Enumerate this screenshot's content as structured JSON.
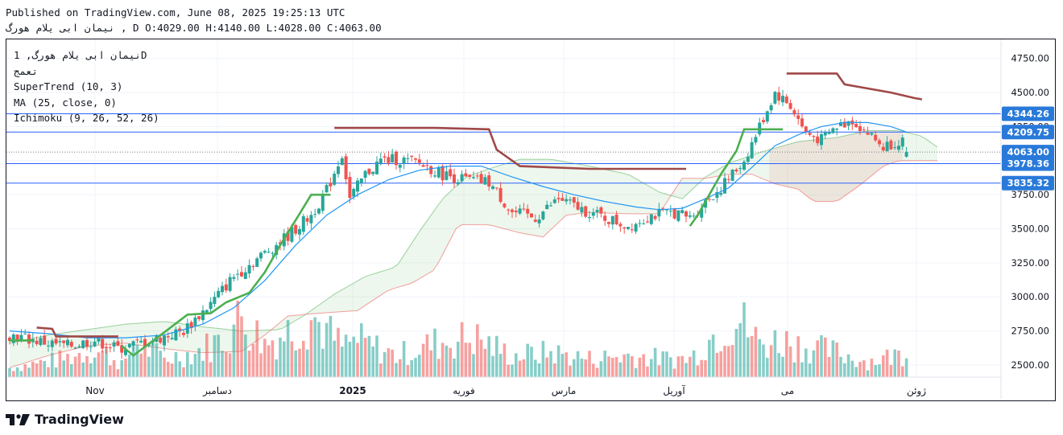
{
  "header": {
    "published": "Published on TradingView.com, June 08, 2025 19:25:13 UTC",
    "symbol_line": "نیمان ابی یلام هورگ ‎, D O:4029.00 H:4140.00 L:4028.00 C:4063.00"
  },
  "legend": {
    "symbol": "نیمان ابی یلام هورگ, 1D",
    "exchange": "تعمج",
    "indicators": [
      "SuperTrend (10, 3)",
      "MA (25, close, 0)",
      "Ichimoku (9, 26, 52, 26)"
    ]
  },
  "footer": {
    "brand": "TradingView"
  },
  "colors": {
    "up": "#26a69a",
    "down": "#ef5350",
    "supertrend_up": "#4caf50",
    "supertrend_down": "#a04848",
    "ma": "#2196f3",
    "cloud_green": "#4caf50",
    "cloud_red": "#ef5350",
    "level": "#2962ff",
    "badge": "#2979d9"
  },
  "chart_data": {
    "type": "candlestick",
    "y_ticks": [
      "4750.00",
      "4500.00",
      "4250.00",
      "4000.00",
      "3750.00",
      "3500.00",
      "3250.00",
      "3000.00",
      "2750.00",
      "2500.00"
    ],
    "ylim": [
      2240,
      4890
    ],
    "x_labels": [
      "Nov",
      "دسامبر",
      "2025",
      "فوریه",
      "مارس",
      "آوریل",
      "می",
      "ژوئن"
    ],
    "price_levels": [
      {
        "label": "4344.26",
        "value": 4344.26
      },
      {
        "label": "4209.75",
        "value": 4209.75
      },
      {
        "label": "4063.00",
        "value": 4063.0,
        "current": true
      },
      {
        "label": "3978.36",
        "value": 3978.36
      },
      {
        "label": "3835.32",
        "value": 3835.32
      }
    ],
    "ohlc_last": {
      "open": 4029.0,
      "high": 4140.0,
      "low": 4028.0,
      "close": 4063.0
    },
    "close_path": [
      [
        0,
        2720
      ],
      [
        10,
        2660
      ],
      [
        15,
        2640
      ],
      [
        22,
        2680
      ],
      [
        28,
        2620
      ],
      [
        38,
        2690
      ],
      [
        45,
        2750
      ],
      [
        52,
        2950
      ],
      [
        58,
        3150
      ],
      [
        65,
        3300
      ],
      [
        72,
        3450
      ],
      [
        78,
        3600
      ],
      [
        82,
        3780
      ],
      [
        86,
        4050
      ],
      [
        88,
        3720
      ],
      [
        92,
        3900
      ],
      [
        96,
        4000
      ],
      [
        100,
        4010
      ],
      [
        106,
        3980
      ],
      [
        112,
        3900
      ],
      [
        118,
        3860
      ],
      [
        124,
        3840
      ],
      [
        130,
        3620
      ],
      [
        136,
        3580
      ],
      [
        142,
        3720
      ],
      [
        148,
        3640
      ],
      [
        154,
        3580
      ],
      [
        160,
        3520
      ],
      [
        166,
        3600
      ],
      [
        172,
        3620
      ],
      [
        176,
        3580
      ],
      [
        180,
        3700
      ],
      [
        184,
        3800
      ],
      [
        190,
        4000
      ],
      [
        194,
        4250
      ],
      [
        198,
        4500
      ],
      [
        202,
        4400
      ],
      [
        206,
        4200
      ],
      [
        210,
        4150
      ],
      [
        214,
        4250
      ],
      [
        218,
        4300
      ],
      [
        222,
        4200
      ],
      [
        226,
        4100
      ],
      [
        230,
        4150
      ],
      [
        234,
        4120
      ],
      [
        238,
        4060
      ]
    ],
    "supertrend": [
      [
        0,
        2680
      ],
      [
        6,
        2680
      ],
      [
        7,
        2775
      ],
      [
        11,
        2765
      ],
      [
        12,
        2710
      ],
      [
        28,
        2710
      ],
      [
        29,
        2640
      ],
      [
        32,
        2570
      ],
      [
        40,
        2740
      ],
      [
        46,
        2870
      ],
      [
        52,
        2880
      ],
      [
        56,
        2960
      ],
      [
        62,
        3030
      ],
      [
        66,
        3180
      ],
      [
        70,
        3380
      ],
      [
        75,
        3610
      ],
      [
        78,
        3750
      ],
      [
        83,
        3750
      ],
      [
        84,
        4240
      ],
      [
        96,
        4240
      ],
      [
        110,
        4240
      ],
      [
        124,
        4230
      ],
      [
        126,
        4080
      ],
      [
        132,
        3960
      ],
      [
        150,
        3940
      ],
      [
        175,
        3940
      ],
      [
        176,
        3520
      ],
      [
        178,
        3600
      ],
      [
        184,
        3900
      ],
      [
        188,
        4070
      ],
      [
        190,
        4230
      ],
      [
        200,
        4230
      ],
      [
        201,
        4640
      ],
      [
        214,
        4640
      ],
      [
        216,
        4560
      ],
      [
        228,
        4500
      ],
      [
        234,
        4460
      ],
      [
        236,
        4450
      ]
    ],
    "supertrend_flip": [
      [
        176,
        3520
      ]
    ],
    "ma25": [
      [
        0,
        2750
      ],
      [
        10,
        2730
      ],
      [
        20,
        2700
      ],
      [
        30,
        2700
      ],
      [
        40,
        2720
      ],
      [
        50,
        2800
      ],
      [
        58,
        2920
      ],
      [
        66,
        3120
      ],
      [
        74,
        3380
      ],
      [
        82,
        3600
      ],
      [
        90,
        3750
      ],
      [
        98,
        3860
      ],
      [
        106,
        3930
      ],
      [
        114,
        3960
      ],
      [
        122,
        3960
      ],
      [
        130,
        3880
      ],
      [
        138,
        3810
      ],
      [
        146,
        3750
      ],
      [
        154,
        3700
      ],
      [
        162,
        3660
      ],
      [
        168,
        3640
      ],
      [
        174,
        3650
      ],
      [
        180,
        3720
      ],
      [
        186,
        3800
      ],
      [
        192,
        3950
      ],
      [
        198,
        4110
      ],
      [
        204,
        4190
      ],
      [
        210,
        4250
      ],
      [
        216,
        4280
      ],
      [
        222,
        4280
      ],
      [
        228,
        4250
      ],
      [
        232,
        4210
      ]
    ],
    "cloud_top": [
      [
        0,
        2660
      ],
      [
        10,
        2720
      ],
      [
        20,
        2760
      ],
      [
        30,
        2800
      ],
      [
        40,
        2820
      ],
      [
        50,
        2780
      ],
      [
        60,
        2750
      ],
      [
        70,
        2760
      ],
      [
        76,
        2860
      ],
      [
        84,
        3020
      ],
      [
        92,
        3150
      ],
      [
        100,
        3220
      ],
      [
        106,
        3480
      ],
      [
        112,
        3720
      ],
      [
        118,
        3880
      ],
      [
        124,
        3940
      ],
      [
        132,
        4010
      ],
      [
        140,
        4010
      ],
      [
        150,
        3960
      ],
      [
        160,
        3900
      ],
      [
        168,
        3770
      ],
      [
        174,
        3720
      ],
      [
        180,
        3880
      ],
      [
        186,
        3980
      ],
      [
        194,
        4060
      ],
      [
        204,
        4140
      ],
      [
        214,
        4170
      ],
      [
        222,
        4220
      ],
      [
        230,
        4220
      ],
      [
        236,
        4180
      ],
      [
        240,
        4100
      ]
    ],
    "cloud_bottom": [
      [
        0,
        2480
      ],
      [
        10,
        2570
      ],
      [
        20,
        2640
      ],
      [
        30,
        2660
      ],
      [
        40,
        2620
      ],
      [
        50,
        2590
      ],
      [
        60,
        2600
      ],
      [
        66,
        2720
      ],
      [
        72,
        2860
      ],
      [
        80,
        2880
      ],
      [
        90,
        2900
      ],
      [
        98,
        3050
      ],
      [
        104,
        3100
      ],
      [
        110,
        3200
      ],
      [
        116,
        3530
      ],
      [
        124,
        3530
      ],
      [
        132,
        3470
      ],
      [
        138,
        3440
      ],
      [
        144,
        3600
      ],
      [
        150,
        3620
      ],
      [
        160,
        3610
      ],
      [
        168,
        3610
      ],
      [
        174,
        3870
      ],
      [
        180,
        3870
      ],
      [
        186,
        3900
      ],
      [
        192,
        3900
      ],
      [
        198,
        3830
      ],
      [
        204,
        3790
      ],
      [
        208,
        3700
      ],
      [
        214,
        3700
      ],
      [
        220,
        3820
      ],
      [
        226,
        3960
      ],
      [
        230,
        4000
      ],
      [
        236,
        4000
      ],
      [
        240,
        4000
      ]
    ],
    "volume_profile": [
      [
        0,
        0.15
      ],
      [
        14,
        0.3
      ],
      [
        22,
        0.45
      ],
      [
        30,
        0.2
      ],
      [
        32,
        0.6
      ],
      [
        40,
        0.3
      ],
      [
        48,
        0.4
      ],
      [
        56,
        0.65
      ],
      [
        60,
        1.0
      ],
      [
        66,
        0.55
      ],
      [
        72,
        0.75
      ],
      [
        78,
        1.0
      ],
      [
        86,
        0.5
      ],
      [
        90,
        0.6
      ],
      [
        100,
        0.35
      ],
      [
        110,
        0.55
      ],
      [
        120,
        0.65
      ],
      [
        130,
        0.35
      ],
      [
        140,
        0.4
      ],
      [
        150,
        0.3
      ],
      [
        160,
        0.35
      ],
      [
        170,
        0.3
      ],
      [
        176,
        0.3
      ],
      [
        180,
        0.55
      ],
      [
        184,
        0.8
      ],
      [
        188,
        1.0
      ],
      [
        194,
        0.55
      ],
      [
        200,
        0.6
      ],
      [
        206,
        0.5
      ],
      [
        214,
        0.4
      ],
      [
        222,
        0.25
      ],
      [
        232,
        0.4
      ]
    ],
    "grid": true
  }
}
